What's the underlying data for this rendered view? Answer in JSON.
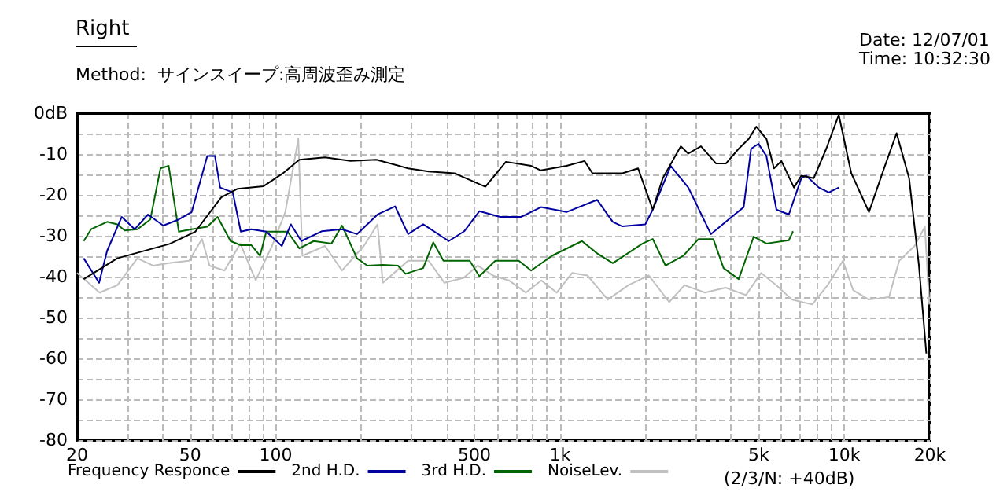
{
  "chart_data": {
    "type": "line",
    "title": "Right",
    "subtitle": "Method:  サインスイープ:高周波歪み測定",
    "annotations": [
      "Date: 12/07/01",
      "Time: 10:32:30",
      "(2/3/N: +40dB)"
    ],
    "log": "x",
    "grid": true,
    "legend": "bottom",
    "marker": "none",
    "line_style": "solid",
    "xlim": [
      20,
      20000
    ],
    "xticks": [
      20,
      {
        "value": 30,
        "label": null
      },
      {
        "value": 40,
        "label": null
      },
      50,
      {
        "value": 60,
        "label": null
      },
      {
        "value": 70,
        "label": null
      },
      {
        "value": 80,
        "label": null
      },
      {
        "value": 90,
        "label": null
      },
      100,
      {
        "value": 200,
        "label": null
      },
      {
        "value": 300,
        "label": null
      },
      {
        "value": 400,
        "label": null
      },
      500,
      {
        "value": 600,
        "label": null
      },
      {
        "value": 700,
        "label": null
      },
      {
        "value": 800,
        "label": null
      },
      {
        "value": 900,
        "label": null
      },
      {
        "value": 1000,
        "label": "1k"
      },
      {
        "value": 2000,
        "label": null
      },
      {
        "value": 3000,
        "label": null
      },
      {
        "value": 4000,
        "label": null
      },
      {
        "value": 5000,
        "label": "5k"
      },
      {
        "value": 6000,
        "label": null
      },
      {
        "value": 7000,
        "label": null
      },
      {
        "value": 8000,
        "label": null
      },
      {
        "value": 9000,
        "label": null
      },
      {
        "value": 10000,
        "label": "10k"
      },
      {
        "value": 20000,
        "label": "20k"
      }
    ],
    "ylim": [
      -80,
      0
    ],
    "yticks": [
      -80,
      {
        "value": -75,
        "label": null
      },
      -70,
      {
        "value": -65,
        "label": null
      },
      -60,
      {
        "value": -55,
        "label": null
      },
      -50,
      {
        "value": -45,
        "label": null
      },
      -40,
      {
        "value": -35,
        "label": null
      },
      -30,
      {
        "value": -25,
        "label": null
      },
      -20,
      {
        "value": -15,
        "label": null
      },
      -10,
      {
        "value": -5,
        "label": null
      },
      {
        "value": 0,
        "label": "0dB"
      }
    ],
    "series": [
      {
        "name": "Frequency Responce",
        "color": "#000000",
        "x": [
          21.1,
          27.7,
          42.3,
          52.1,
          64.3,
          73.4,
          90.4,
          106,
          121,
          149,
          183,
          226,
          292,
          345,
          425,
          546,
          645,
          791,
          856,
          1054,
          1219,
          1300,
          1657,
          1881,
          2119,
          2298,
          2659,
          2826,
          3131,
          3534,
          3837,
          4250,
          4610,
          4900,
          5322,
          5656,
          6008,
          6650,
          7058,
          7810,
          8640,
          9560,
          10580,
          12210,
          13800,
          15270,
          16900,
          18300,
          19430
        ],
        "values": [
          -40.6,
          -35.5,
          -32,
          -29,
          -20.6,
          -18.5,
          -17.9,
          -14.7,
          -11.4,
          -10.8,
          -11.7,
          -11.4,
          -13.5,
          -14.3,
          -14.7,
          -18,
          -11.9,
          -12.9,
          -14,
          -12.9,
          -11.7,
          -14.7,
          -14.7,
          -13.5,
          -23.6,
          -15.9,
          -8.1,
          -9.9,
          -8.1,
          -12.3,
          -12.3,
          -8.7,
          -6.3,
          -3.3,
          -6.3,
          -13.5,
          -11.7,
          -18.2,
          -15.3,
          -15.9,
          -8.7,
          -0.4,
          -14.7,
          -24.2,
          -13.5,
          -4.9,
          -15.9,
          -37.3,
          -58.8
        ]
      },
      {
        "name": "2nd H.D.",
        "color": "#0000a0",
        "x": [
          21.1,
          23.9,
          25.5,
          28.7,
          31.9,
          35.5,
          40.2,
          45.6,
          50.6,
          57.4,
          61.1,
          63.7,
          70.6,
          75.3,
          82,
          92.6,
          105,
          113,
          123,
          145,
          171,
          193,
          228,
          263,
          292,
          330,
          406,
          460,
          520,
          616,
          728,
          857,
          1054,
          1350,
          1533,
          1657,
          1995,
          2119,
          2450,
          2826,
          3393,
          3916,
          4425,
          4700,
          4990,
          5320,
          5770,
          6380,
          7060,
          7340,
          8130,
          8820,
          9560
        ],
        "values": [
          -35.5,
          -41.5,
          -33.7,
          -25.4,
          -28.4,
          -24.8,
          -27.5,
          -26,
          -24.2,
          -10.5,
          -10.5,
          -18.2,
          -19.4,
          -29,
          -28.4,
          -29,
          -32.5,
          -27.2,
          -31.3,
          -28.9,
          -28.4,
          -29.6,
          -24.8,
          -22.8,
          -29.6,
          -27.2,
          -31.3,
          -28.9,
          -24,
          -25.4,
          -25.4,
          -23,
          -24.2,
          -21.2,
          -26.6,
          -27.7,
          -27.2,
          -23.6,
          -12.9,
          -18.2,
          -29.6,
          -26,
          -23,
          -8.7,
          -7.5,
          -10.5,
          -23.6,
          -24.8,
          -15.9,
          -15.3,
          -18.2,
          -19.4,
          -18.2
        ]
      },
      {
        "name": "3rd H.D.",
        "color": "#006400",
        "x": [
          21.1,
          22.4,
          25.5,
          27.7,
          29.4,
          32.6,
          36.2,
          39.3,
          42,
          45.6,
          50.6,
          57.4,
          62.4,
          69.3,
          75.3,
          82,
          88,
          92.6,
          110,
          121,
          136,
          157,
          171,
          193,
          210,
          238,
          269,
          286,
          330,
          358,
          389,
          481,
          520,
          592,
          716,
          791,
          936,
          1194,
          1350,
          1533,
          1952,
          2119,
          2350,
          2713,
          3070,
          3460,
          3760,
          4250,
          4800,
          5320,
          6380,
          6600
        ],
        "values": [
          -31.3,
          -28.4,
          -26.6,
          -27.2,
          -28.7,
          -28.4,
          -26,
          -13.5,
          -12.9,
          -29,
          -28.4,
          -27.8,
          -25.4,
          -31.3,
          -32.3,
          -32.3,
          -34.9,
          -29,
          -29,
          -33.1,
          -31.3,
          -31.9,
          -27.5,
          -35.5,
          -37.3,
          -37.1,
          -37.3,
          -39.3,
          -37.9,
          -31.6,
          -36.1,
          -36.1,
          -39.9,
          -36.1,
          -36.1,
          -38.5,
          -34.9,
          -31.3,
          -34.3,
          -36.7,
          -31.9,
          -30.8,
          -37.3,
          -34.9,
          -30.8,
          -30.8,
          -37.9,
          -40.6,
          -30.2,
          -31.9,
          -31.1,
          -28.9
        ]
      },
      {
        "name": "NoiseLev.",
        "color": "#c0c0c0",
        "x": [
          20,
          24,
          27.7,
          32.6,
          37,
          42,
          49.5,
          55,
          58.5,
          66,
          75,
          85,
          97,
          108,
          120,
          124,
          149,
          171,
          204,
          228,
          238,
          292,
          345,
          392,
          458,
          513,
          580,
          660,
          758,
          859,
          973,
          1102,
          1248,
          1472,
          1738,
          2051,
          2421,
          2741,
          3236,
          3819,
          4508,
          5094,
          5770,
          6532,
          7710,
          8730,
          9886,
          10740,
          12160,
          14360,
          15600,
          17670,
          19200,
          19900
        ],
        "values": [
          -39.1,
          -43.9,
          -42.1,
          -35.5,
          -37.3,
          -36.7,
          -36.1,
          -30.8,
          -37.3,
          -38.5,
          -31.9,
          -40.9,
          -32.5,
          -24.2,
          -6.3,
          -34.9,
          -32.5,
          -38.5,
          -32.5,
          -27.2,
          -41.5,
          -36.1,
          -36.1,
          -41.5,
          -40.3,
          -37.3,
          -39.7,
          -40.9,
          -43.9,
          -40.9,
          -43.9,
          -39.1,
          -39.7,
          -45.6,
          -42.1,
          -39.7,
          -46.2,
          -42.1,
          -43.9,
          -42.7,
          -44.5,
          -39.1,
          -42.1,
          -45.6,
          -46.8,
          -42.1,
          -36.1,
          -43.3,
          -45.6,
          -45,
          -36.1,
          -32.5,
          -27.8,
          -46.8
        ]
      }
    ]
  }
}
